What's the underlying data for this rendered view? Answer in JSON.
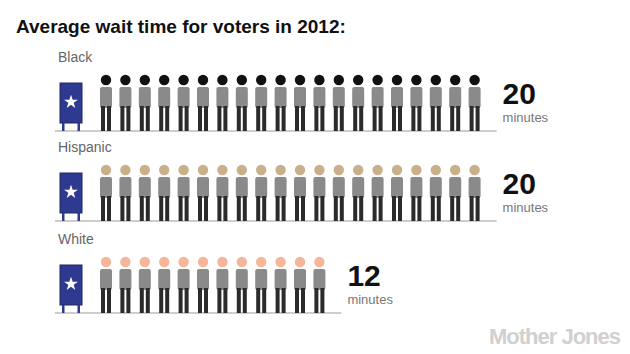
{
  "chart_data": {
    "type": "pictogram",
    "title": "Average wait time for voters in 2012:",
    "categories": [
      "Black",
      "Hispanic",
      "White"
    ],
    "values": [
      20,
      20,
      12
    ],
    "colors": [
      "#111111",
      "#c9b08a",
      "#f5b69a"
    ],
    "data_labels": true,
    "annotations": [
      "minutes",
      "minutes",
      "minutes"
    ],
    "source": "Mother Jones"
  }
}
